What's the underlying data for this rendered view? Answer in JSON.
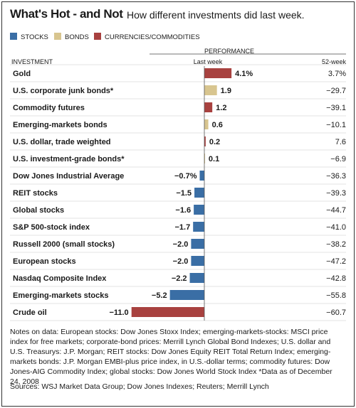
{
  "header": {
    "title": "What's Hot - and Not",
    "subtitle": "How different investments did last week."
  },
  "legend": [
    {
      "label": "STOCKS",
      "color": "#3a6ea5"
    },
    {
      "label": "BONDS",
      "color": "#d8c58f"
    },
    {
      "label": "CURRENCIES/COMMODITIES",
      "color": "#a8413f"
    }
  ],
  "colors": {
    "stocks": "#3a6ea5",
    "bonds": "#d8c58f",
    "commodities": "#a8413f"
  },
  "chart_data": {
    "type": "bar",
    "orientation": "horizontal",
    "column_headers": {
      "investment": "INVESTMENT",
      "performance": "PERFORMANCE",
      "last_week": "Last week",
      "week52": "52-week"
    },
    "xlim": [
      -11.0,
      4.1
    ],
    "rows": [
      {
        "name": "Gold",
        "type": "commodities",
        "last_week": 4.1,
        "label": "4.1%",
        "week52": "3.7%"
      },
      {
        "name": "U.S. corporate junk bonds*",
        "type": "bonds",
        "last_week": 1.9,
        "label": "1.9",
        "week52": "−29.7"
      },
      {
        "name": "Commodity futures",
        "type": "commodities",
        "last_week": 1.2,
        "label": "1.2",
        "week52": "−39.1"
      },
      {
        "name": "Emerging-markets bonds",
        "type": "bonds",
        "last_week": 0.6,
        "label": "0.6",
        "week52": "−10.1"
      },
      {
        "name": "U.S. dollar, trade weighted",
        "type": "commodities",
        "last_week": 0.2,
        "label": "0.2",
        "week52": "7.6"
      },
      {
        "name": "U.S. investment-grade bonds*",
        "type": "bonds",
        "last_week": 0.1,
        "label": "0.1",
        "week52": "−6.9"
      },
      {
        "name": "Dow Jones Industrial Average",
        "type": "stocks",
        "last_week": -0.7,
        "label": "−0.7%",
        "week52": "−36.3"
      },
      {
        "name": "REIT stocks",
        "type": "stocks",
        "last_week": -1.5,
        "label": "−1.5",
        "week52": "−39.3"
      },
      {
        "name": "Global stocks",
        "type": "stocks",
        "last_week": -1.6,
        "label": "−1.6",
        "week52": "−44.7"
      },
      {
        "name": "S&P 500-stock index",
        "type": "stocks",
        "last_week": -1.7,
        "label": "−1.7",
        "week52": "−41.0"
      },
      {
        "name": "Russell 2000 (small stocks)",
        "type": "stocks",
        "last_week": -2.0,
        "label": "−2.0",
        "week52": "−38.2"
      },
      {
        "name": "European stocks",
        "type": "stocks",
        "last_week": -2.0,
        "label": "−2.0",
        "week52": "−47.2"
      },
      {
        "name": "Nasdaq Composite Index",
        "type": "stocks",
        "last_week": -2.2,
        "label": "−2.2",
        "week52": "−42.8"
      },
      {
        "name": "Emerging-markets stocks",
        "type": "stocks",
        "last_week": -5.2,
        "label": "−5.2",
        "week52": "−55.8"
      },
      {
        "name": "Crude oil",
        "type": "commodities",
        "last_week": -11.0,
        "label": "−11.0",
        "week52": "−60.7"
      }
    ]
  },
  "notes": "Notes on data: European stocks: Dow Jones Stoxx Index; emerging-markets-stocks: MSCI price index for free markets; corporate-bond prices: Merrill Lynch Global Bond Indexes; U.S. dollar and U.S. Treasurys: J.P. Morgan; REIT stocks: Dow Jones Equity REIT Total Return Index; emerging-markets bonds: J.P. Morgan EMBI-plus price index, in U.S.-dollar terms; commodity futures: Dow Jones-AIG Commodity Index; global stocks: Dow Jones World Stock Index  *Data as of December 24, 2008",
  "sources": "Sources: WSJ Market Data Group; Dow Jones Indexes; Reuters; Merrill Lynch"
}
